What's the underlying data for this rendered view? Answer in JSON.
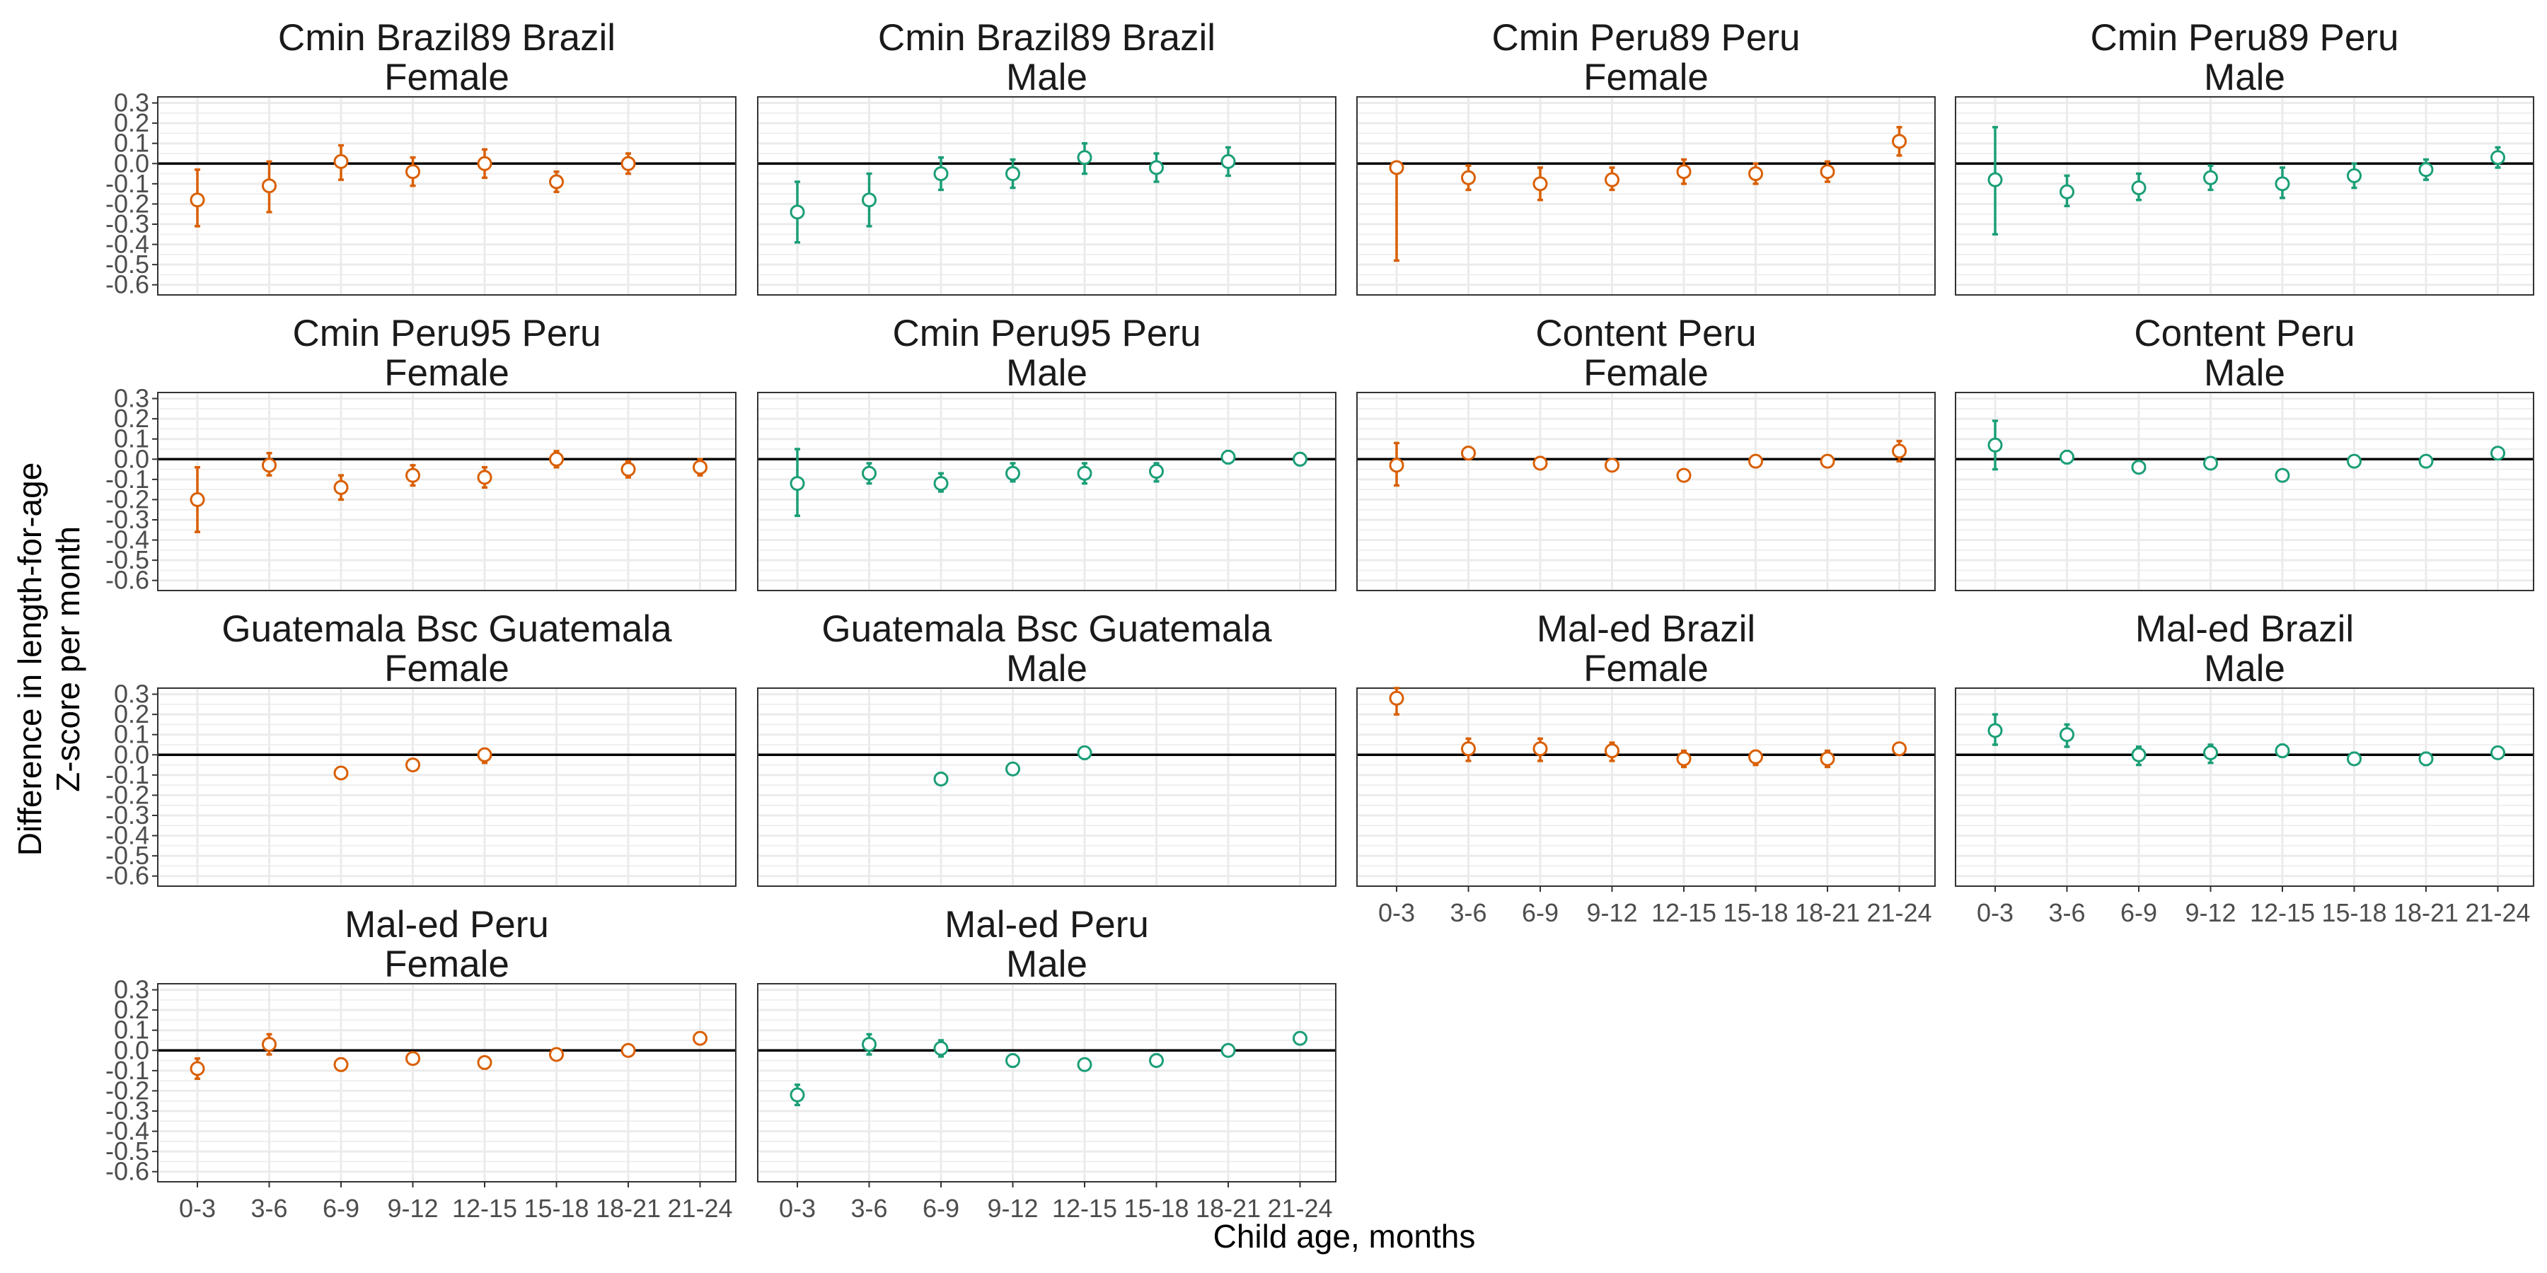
{
  "chart_data": {
    "type": "scatter",
    "subtype": "point with error bars, faceted",
    "xlabel": "Child age, months",
    "ylabel_lines": [
      "Difference in length-for-age",
      "Z-score per month"
    ],
    "categories": [
      "0-3",
      "3-6",
      "6-9",
      "9-12",
      "12-15",
      "15-18",
      "18-21",
      "21-24"
    ],
    "y_ticks": [
      0.3,
      0.2,
      0.1,
      0.0,
      -0.1,
      -0.2,
      -0.3,
      -0.4,
      -0.5,
      -0.6
    ],
    "y_tick_labels": [
      "0.3",
      "0.2",
      "0.1",
      "0.0",
      "-0.1",
      "-0.2",
      "-0.3",
      "-0.4",
      "-0.5",
      "-0.6"
    ],
    "ylim": [
      -0.65,
      0.33
    ],
    "reference_line": 0,
    "grid": true,
    "colors": {
      "Female": "#D95F02",
      "Male": "#1B9E77",
      "zero_line": "#000000",
      "grid": "#EBEBEB",
      "panel_border": "#333333"
    },
    "panels": [
      {
        "title_line1": "Cmin Brazil89 Brazil",
        "title_line2": "Female",
        "sex": "Female",
        "points": [
          {
            "x": "0-3",
            "y": -0.18,
            "lo": -0.31,
            "hi": -0.03
          },
          {
            "x": "3-6",
            "y": -0.11,
            "lo": -0.24,
            "hi": 0.01
          },
          {
            "x": "6-9",
            "y": 0.01,
            "lo": -0.08,
            "hi": 0.09
          },
          {
            "x": "9-12",
            "y": -0.04,
            "lo": -0.11,
            "hi": 0.03
          },
          {
            "x": "12-15",
            "y": 0.0,
            "lo": -0.07,
            "hi": 0.07
          },
          {
            "x": "15-18",
            "y": -0.09,
            "lo": -0.14,
            "hi": -0.04
          },
          {
            "x": "18-21",
            "y": 0.0,
            "lo": -0.05,
            "hi": 0.05
          }
        ]
      },
      {
        "title_line1": "Cmin Brazil89 Brazil",
        "title_line2": "Male",
        "sex": "Male",
        "points": [
          {
            "x": "0-3",
            "y": -0.24,
            "lo": -0.39,
            "hi": -0.09
          },
          {
            "x": "3-6",
            "y": -0.18,
            "lo": -0.31,
            "hi": -0.05
          },
          {
            "x": "6-9",
            "y": -0.05,
            "lo": -0.13,
            "hi": 0.03
          },
          {
            "x": "9-12",
            "y": -0.05,
            "lo": -0.12,
            "hi": 0.02
          },
          {
            "x": "12-15",
            "y": 0.03,
            "lo": -0.05,
            "hi": 0.1
          },
          {
            "x": "15-18",
            "y": -0.02,
            "lo": -0.09,
            "hi": 0.05
          },
          {
            "x": "18-21",
            "y": 0.01,
            "lo": -0.06,
            "hi": 0.08
          }
        ]
      },
      {
        "title_line1": "Cmin Peru89 Peru",
        "title_line2": "Female",
        "sex": "Female",
        "points": [
          {
            "x": "0-3",
            "y": -0.02,
            "lo": -0.48,
            "hi": -0.02
          },
          {
            "x": "3-6",
            "y": -0.07,
            "lo": -0.13,
            "hi": -0.01
          },
          {
            "x": "6-9",
            "y": -0.1,
            "lo": -0.18,
            "hi": -0.02
          },
          {
            "x": "9-12",
            "y": -0.08,
            "lo": -0.13,
            "hi": -0.02
          },
          {
            "x": "12-15",
            "y": -0.04,
            "lo": -0.1,
            "hi": 0.02
          },
          {
            "x": "15-18",
            "y": -0.05,
            "lo": -0.1,
            "hi": 0.0
          },
          {
            "x": "18-21",
            "y": -0.04,
            "lo": -0.09,
            "hi": 0.01
          },
          {
            "x": "21-24",
            "y": 0.11,
            "lo": 0.04,
            "hi": 0.18
          }
        ]
      },
      {
        "title_line1": "Cmin Peru89 Peru",
        "title_line2": "Male",
        "sex": "Male",
        "points": [
          {
            "x": "0-3",
            "y": -0.08,
            "lo": -0.35,
            "hi": 0.18
          },
          {
            "x": "3-6",
            "y": -0.14,
            "lo": -0.21,
            "hi": -0.06
          },
          {
            "x": "6-9",
            "y": -0.12,
            "lo": -0.18,
            "hi": -0.05
          },
          {
            "x": "9-12",
            "y": -0.07,
            "lo": -0.13,
            "hi": -0.01
          },
          {
            "x": "12-15",
            "y": -0.1,
            "lo": -0.17,
            "hi": -0.02
          },
          {
            "x": "15-18",
            "y": -0.06,
            "lo": -0.12,
            "hi": 0.0
          },
          {
            "x": "18-21",
            "y": -0.03,
            "lo": -0.08,
            "hi": 0.02
          },
          {
            "x": "21-24",
            "y": 0.03,
            "lo": -0.02,
            "hi": 0.08
          }
        ]
      },
      {
        "title_line1": "Cmin Peru95 Peru",
        "title_line2": "Female",
        "sex": "Female",
        "points": [
          {
            "x": "0-3",
            "y": -0.2,
            "lo": -0.36,
            "hi": -0.04
          },
          {
            "x": "3-6",
            "y": -0.03,
            "lo": -0.08,
            "hi": 0.03
          },
          {
            "x": "6-9",
            "y": -0.14,
            "lo": -0.2,
            "hi": -0.08
          },
          {
            "x": "9-12",
            "y": -0.08,
            "lo": -0.13,
            "hi": -0.03
          },
          {
            "x": "12-15",
            "y": -0.09,
            "lo": -0.14,
            "hi": -0.04
          },
          {
            "x": "15-18",
            "y": 0.0,
            "lo": -0.04,
            "hi": 0.04
          },
          {
            "x": "18-21",
            "y": -0.05,
            "lo": -0.09,
            "hi": -0.01
          },
          {
            "x": "21-24",
            "y": -0.04,
            "lo": -0.08,
            "hi": 0.0
          }
        ]
      },
      {
        "title_line1": "Cmin Peru95 Peru",
        "title_line2": "Male",
        "sex": "Male",
        "points": [
          {
            "x": "0-3",
            "y": -0.12,
            "lo": -0.28,
            "hi": 0.05
          },
          {
            "x": "3-6",
            "y": -0.07,
            "lo": -0.12,
            "hi": -0.02
          },
          {
            "x": "6-9",
            "y": -0.12,
            "lo": -0.16,
            "hi": -0.07
          },
          {
            "x": "9-12",
            "y": -0.07,
            "lo": -0.11,
            "hi": -0.02
          },
          {
            "x": "12-15",
            "y": -0.07,
            "lo": -0.12,
            "hi": -0.02
          },
          {
            "x": "15-18",
            "y": -0.06,
            "lo": -0.11,
            "hi": -0.02
          },
          {
            "x": "18-21",
            "y": 0.01,
            "lo": -0.02,
            "hi": 0.04
          },
          {
            "x": "21-24",
            "y": 0.0,
            "lo": -0.03,
            "hi": 0.03
          }
        ]
      },
      {
        "title_line1": "Content Peru",
        "title_line2": "Female",
        "sex": "Female",
        "points": [
          {
            "x": "0-3",
            "y": -0.03,
            "lo": -0.13,
            "hi": 0.08
          },
          {
            "x": "3-6",
            "y": 0.03,
            "lo": 0.0,
            "hi": 0.06
          },
          {
            "x": "6-9",
            "y": -0.02,
            "lo": -0.04,
            "hi": 0.01
          },
          {
            "x": "9-12",
            "y": -0.03,
            "lo": -0.05,
            "hi": -0.01
          },
          {
            "x": "12-15",
            "y": -0.08,
            "lo": -0.1,
            "hi": -0.06
          },
          {
            "x": "15-18",
            "y": -0.01,
            "lo": -0.03,
            "hi": 0.01
          },
          {
            "x": "18-21",
            "y": -0.01,
            "lo": -0.03,
            "hi": 0.01
          },
          {
            "x": "21-24",
            "y": 0.04,
            "lo": -0.01,
            "hi": 0.09
          }
        ]
      },
      {
        "title_line1": "Content Peru",
        "title_line2": "Male",
        "sex": "Male",
        "points": [
          {
            "x": "0-3",
            "y": 0.07,
            "lo": -0.05,
            "hi": 0.19
          },
          {
            "x": "3-6",
            "y": 0.01,
            "lo": -0.02,
            "hi": 0.04
          },
          {
            "x": "6-9",
            "y": -0.04,
            "lo": -0.06,
            "hi": -0.01
          },
          {
            "x": "9-12",
            "y": -0.02,
            "lo": -0.04,
            "hi": 0.0
          },
          {
            "x": "12-15",
            "y": -0.08,
            "lo": -0.1,
            "hi": -0.06
          },
          {
            "x": "15-18",
            "y": -0.01,
            "lo": -0.03,
            "hi": 0.01
          },
          {
            "x": "18-21",
            "y": -0.01,
            "lo": -0.03,
            "hi": 0.01
          },
          {
            "x": "21-24",
            "y": 0.03,
            "lo": 0.0,
            "hi": 0.05
          }
        ]
      },
      {
        "title_line1": "Guatemala Bsc Guatemala",
        "title_line2": "Female",
        "sex": "Female",
        "points": [
          {
            "x": "6-9",
            "y": -0.09,
            "lo": -0.11,
            "hi": -0.07
          },
          {
            "x": "9-12",
            "y": -0.05,
            "lo": -0.07,
            "hi": -0.03
          },
          {
            "x": "12-15",
            "y": 0.0,
            "lo": -0.04,
            "hi": 0.03
          }
        ]
      },
      {
        "title_line1": "Guatemala Bsc Guatemala",
        "title_line2": "Male",
        "sex": "Male",
        "points": [
          {
            "x": "6-9",
            "y": -0.12,
            "lo": -0.14,
            "hi": -0.09
          },
          {
            "x": "9-12",
            "y": -0.07,
            "lo": -0.09,
            "hi": -0.05
          },
          {
            "x": "12-15",
            "y": 0.01,
            "lo": -0.02,
            "hi": 0.03
          }
        ]
      },
      {
        "title_line1": "Mal-ed Brazil",
        "title_line2": "Female",
        "sex": "Female",
        "points": [
          {
            "x": "0-3",
            "y": 0.28,
            "lo": 0.2,
            "hi": 0.33
          },
          {
            "x": "3-6",
            "y": 0.03,
            "lo": -0.03,
            "hi": 0.08
          },
          {
            "x": "6-9",
            "y": 0.03,
            "lo": -0.03,
            "hi": 0.08
          },
          {
            "x": "9-12",
            "y": 0.02,
            "lo": -0.03,
            "hi": 0.06
          },
          {
            "x": "12-15",
            "y": -0.02,
            "lo": -0.06,
            "hi": 0.02
          },
          {
            "x": "15-18",
            "y": -0.01,
            "lo": -0.05,
            "hi": 0.02
          },
          {
            "x": "18-21",
            "y": -0.02,
            "lo": -0.06,
            "hi": 0.02
          },
          {
            "x": "21-24",
            "y": 0.03,
            "lo": 0.0,
            "hi": 0.05
          }
        ]
      },
      {
        "title_line1": "Mal-ed Brazil",
        "title_line2": "Male",
        "sex": "Male",
        "points": [
          {
            "x": "0-3",
            "y": 0.12,
            "lo": 0.05,
            "hi": 0.2
          },
          {
            "x": "3-6",
            "y": 0.1,
            "lo": 0.04,
            "hi": 0.15
          },
          {
            "x": "6-9",
            "y": 0.0,
            "lo": -0.05,
            "hi": 0.04
          },
          {
            "x": "9-12",
            "y": 0.01,
            "lo": -0.04,
            "hi": 0.05
          },
          {
            "x": "12-15",
            "y": 0.02,
            "lo": -0.01,
            "hi": 0.05
          },
          {
            "x": "15-18",
            "y": -0.02,
            "lo": -0.04,
            "hi": 0.01
          },
          {
            "x": "18-21",
            "y": -0.02,
            "lo": -0.05,
            "hi": 0.01
          },
          {
            "x": "21-24",
            "y": 0.01,
            "lo": -0.01,
            "hi": 0.03
          }
        ]
      },
      {
        "title_line1": "Mal-ed Peru",
        "title_line2": "Female",
        "sex": "Female",
        "points": [
          {
            "x": "0-3",
            "y": -0.09,
            "lo": -0.14,
            "hi": -0.04
          },
          {
            "x": "3-6",
            "y": 0.03,
            "lo": -0.02,
            "hi": 0.08
          },
          {
            "x": "6-9",
            "y": -0.07,
            "lo": -0.1,
            "hi": -0.04
          },
          {
            "x": "9-12",
            "y": -0.04,
            "lo": -0.06,
            "hi": -0.01
          },
          {
            "x": "12-15",
            "y": -0.06,
            "lo": -0.09,
            "hi": -0.04
          },
          {
            "x": "15-18",
            "y": -0.02,
            "lo": -0.04,
            "hi": 0.0
          },
          {
            "x": "18-21",
            "y": 0.0,
            "lo": -0.02,
            "hi": 0.02
          },
          {
            "x": "21-24",
            "y": 0.06,
            "lo": 0.04,
            "hi": 0.08
          }
        ]
      },
      {
        "title_line1": "Mal-ed Peru",
        "title_line2": "Male",
        "sex": "Male",
        "points": [
          {
            "x": "0-3",
            "y": -0.22,
            "lo": -0.27,
            "hi": -0.17
          },
          {
            "x": "3-6",
            "y": 0.03,
            "lo": -0.02,
            "hi": 0.08
          },
          {
            "x": "6-9",
            "y": 0.01,
            "lo": -0.03,
            "hi": 0.05
          },
          {
            "x": "9-12",
            "y": -0.05,
            "lo": -0.08,
            "hi": -0.02
          },
          {
            "x": "12-15",
            "y": -0.07,
            "lo": -0.09,
            "hi": -0.05
          },
          {
            "x": "15-18",
            "y": -0.05,
            "lo": -0.07,
            "hi": -0.02
          },
          {
            "x": "18-21",
            "y": 0.0,
            "lo": -0.01,
            "hi": 0.02
          },
          {
            "x": "21-24",
            "y": 0.06,
            "lo": 0.04,
            "hi": 0.08
          }
        ]
      }
    ]
  }
}
